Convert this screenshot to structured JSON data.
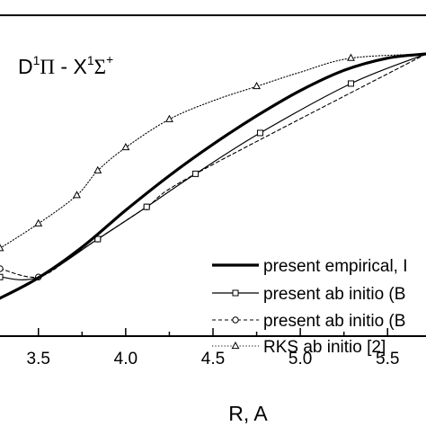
{
  "chart_data": {
    "type": "line",
    "title_parts": {
      "d_letter": "D",
      "d_sup": "1",
      "pi": "Π",
      "dash": " - ",
      "x_letter": "X",
      "x_sup": "1",
      "sigma": "Σ",
      "sigma_sup": "+"
    },
    "xlabel": "R, A",
    "ylabel": "",
    "xlim": [
      3.28,
      5.72
    ],
    "ylim": [
      0.0,
      1.0
    ],
    "x_ticks": [
      3.5,
      4.0,
      4.5,
      5.0,
      5.5
    ],
    "x_tick_labels": [
      "3.5",
      "4.0",
      "4.5",
      "5.0",
      "5.5"
    ],
    "grid": false,
    "legend_position": "bottom-right",
    "series": [
      {
        "name": "present empirical, I",
        "style": "thick-solid",
        "marker": "none",
        "x": [
          3.28,
          3.5,
          3.75,
          4.0,
          4.25,
          4.5,
          4.75,
          5.0,
          5.25,
          5.5,
          5.72
        ],
        "y": [
          0.0785,
          0.1555,
          0.2711,
          0.4104,
          0.5408,
          0.6589,
          0.7663,
          0.8617,
          0.938,
          0.9839,
          1.0
        ]
      },
      {
        "name": "present ab initio (B",
        "style": "thin-solid",
        "marker": "square",
        "x": [
          3.28,
          3.5,
          3.84,
          4.12,
          4.4,
          4.77,
          5.29,
          5.72
        ],
        "y": [
          0.1585,
          0.1585,
          0.3016,
          0.4232,
          0.5479,
          0.7019,
          0.8883,
          0.9997
        ],
        "marker_x": [
          3.28,
          3.84,
          4.12,
          4.4,
          4.77,
          5.29
        ]
      },
      {
        "name": "present ab initio (B",
        "style": "dashed",
        "marker": "circle",
        "x": [
          3.28,
          3.5,
          3.7,
          3.84,
          4.12,
          4.4,
          5.72
        ],
        "y": [
          0.19,
          0.1585,
          0.2407,
          0.3016,
          0.4232,
          0.5479,
          0.9997
        ],
        "marker_x": [
          3.28,
          3.5,
          3.84,
          4.12
        ]
      },
      {
        "name": "RKS ab initio [2]",
        "style": "dotted",
        "marker": "triangle",
        "x": [
          3.28,
          3.5,
          3.72,
          3.84,
          4.0,
          4.25,
          4.5,
          4.75,
          5.0,
          5.29,
          5.72
        ],
        "y": [
          0.2667,
          0.36,
          0.4667,
          0.56,
          0.6472,
          0.7534,
          0.823,
          0.8777,
          0.9309,
          0.9842,
          1.0
        ],
        "marker_x": [
          3.28,
          3.5,
          3.72,
          3.84,
          4.0,
          4.25,
          4.75,
          5.29
        ]
      }
    ]
  }
}
